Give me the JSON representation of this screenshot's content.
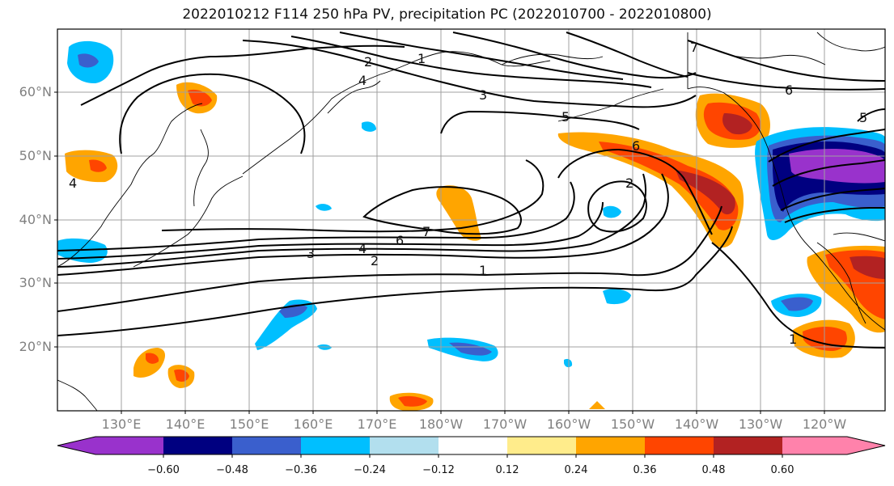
{
  "title": "2022010212 F114 250 hPa PV, precipitation PC (2022010700 - 2022010800)",
  "lat_labels": [
    "60°N",
    "50°N",
    "40°N",
    "30°N",
    "20°N"
  ],
  "lon_labels": [
    "130°E",
    "140°E",
    "150°E",
    "160°E",
    "170°E",
    "180°W",
    "170°W",
    "160°W",
    "150°W",
    "140°W",
    "130°W",
    "120°W"
  ],
  "colorbar": {
    "tick_labels": [
      "−0.60",
      "−0.48",
      "−0.36",
      "−0.24",
      "−0.12",
      "0.12",
      "0.24",
      "0.36",
      "0.48",
      "0.60"
    ],
    "colors": [
      "#9932cc",
      "#000080",
      "#3a5fcd",
      "#00bfff",
      "#b2dfee",
      "#ffffff",
      "#ffec8b",
      "#ffa500",
      "#ff4500",
      "#b22222",
      "#ff82ab"
    ]
  },
  "contour_labels": [
    "2",
    "1",
    "4",
    "3",
    "5",
    "7",
    "6",
    "6",
    "2",
    "7",
    "6",
    "4",
    "3",
    "2",
    "1",
    "1",
    "5",
    "4"
  ]
}
